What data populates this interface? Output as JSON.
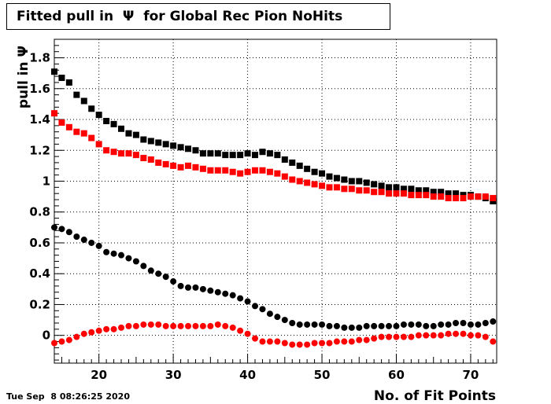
{
  "chart_data": {
    "type": "scatter",
    "title": "Fitted pull in  Ψ  for Global Rec Pion NoHits",
    "xlabel": "No. of Fit Points",
    "ylabel": "pull in Ψ",
    "xlim": [
      14,
      73.5
    ],
    "ylim": [
      -0.18,
      1.92
    ],
    "x_ticks": [
      20,
      30,
      40,
      50,
      60,
      70
    ],
    "y_ticks": [
      0,
      0.2,
      0.4,
      0.6,
      0.8,
      1,
      1.2,
      1.4,
      1.6,
      1.8
    ],
    "x_tick_labels": [
      "20",
      "30",
      "40",
      "50",
      "60",
      "70"
    ],
    "y_tick_labels": [
      "0",
      "0.2",
      "0.4",
      "0.6",
      "0.8",
      "1",
      "1.2",
      "1.4",
      "1.6",
      "1.8"
    ],
    "grid": true,
    "x": [
      14,
      15,
      16,
      17,
      18,
      19,
      20,
      21,
      22,
      23,
      24,
      25,
      26,
      27,
      28,
      29,
      30,
      31,
      32,
      33,
      34,
      35,
      36,
      37,
      38,
      39,
      40,
      41,
      42,
      43,
      44,
      45,
      46,
      47,
      48,
      49,
      50,
      51,
      52,
      53,
      54,
      55,
      56,
      57,
      58,
      59,
      60,
      61,
      62,
      63,
      64,
      65,
      66,
      67,
      68,
      69,
      70,
      71,
      72,
      73
    ],
    "series": [
      {
        "marker": "square",
        "color": "#000000",
        "values": [
          1.71,
          1.67,
          1.64,
          1.56,
          1.52,
          1.47,
          1.43,
          1.39,
          1.37,
          1.34,
          1.31,
          1.3,
          1.27,
          1.26,
          1.25,
          1.24,
          1.23,
          1.22,
          1.21,
          1.2,
          1.18,
          1.18,
          1.18,
          1.17,
          1.17,
          1.17,
          1.18,
          1.17,
          1.19,
          1.18,
          1.17,
          1.14,
          1.12,
          1.1,
          1.08,
          1.06,
          1.05,
          1.03,
          1.02,
          1.01,
          1.0,
          1.0,
          0.99,
          0.98,
          0.97,
          0.96,
          0.96,
          0.95,
          0.95,
          0.94,
          0.94,
          0.93,
          0.93,
          0.92,
          0.92,
          0.91,
          0.91,
          0.9,
          0.89,
          0.87
        ]
      },
      {
        "marker": "square",
        "color": "#ff0000",
        "values": [
          1.44,
          1.38,
          1.35,
          1.32,
          1.31,
          1.28,
          1.24,
          1.2,
          1.19,
          1.18,
          1.18,
          1.17,
          1.15,
          1.14,
          1.12,
          1.11,
          1.1,
          1.09,
          1.1,
          1.09,
          1.08,
          1.07,
          1.07,
          1.07,
          1.06,
          1.05,
          1.06,
          1.07,
          1.07,
          1.06,
          1.05,
          1.03,
          1.01,
          1.0,
          0.99,
          0.98,
          0.97,
          0.96,
          0.96,
          0.95,
          0.95,
          0.94,
          0.94,
          0.93,
          0.93,
          0.92,
          0.92,
          0.92,
          0.91,
          0.91,
          0.91,
          0.9,
          0.9,
          0.89,
          0.89,
          0.89,
          0.9,
          0.9,
          0.9,
          0.89
        ]
      },
      {
        "marker": "circle",
        "color": "#000000",
        "values": [
          0.7,
          0.69,
          0.67,
          0.64,
          0.62,
          0.6,
          0.58,
          0.54,
          0.53,
          0.52,
          0.5,
          0.48,
          0.45,
          0.42,
          0.4,
          0.38,
          0.35,
          0.32,
          0.31,
          0.31,
          0.3,
          0.29,
          0.28,
          0.27,
          0.26,
          0.24,
          0.22,
          0.19,
          0.17,
          0.14,
          0.12,
          0.1,
          0.08,
          0.07,
          0.07,
          0.07,
          0.07,
          0.06,
          0.06,
          0.05,
          0.05,
          0.05,
          0.06,
          0.06,
          0.06,
          0.06,
          0.06,
          0.07,
          0.07,
          0.07,
          0.06,
          0.06,
          0.07,
          0.07,
          0.08,
          0.08,
          0.07,
          0.07,
          0.08,
          0.09
        ]
      },
      {
        "marker": "circle",
        "color": "#ff0000",
        "values": [
          -0.05,
          -0.04,
          -0.03,
          -0.01,
          0.01,
          0.02,
          0.03,
          0.04,
          0.04,
          0.05,
          0.06,
          0.06,
          0.07,
          0.07,
          0.07,
          0.06,
          0.06,
          0.06,
          0.06,
          0.06,
          0.06,
          0.06,
          0.07,
          0.06,
          0.05,
          0.03,
          0.01,
          -0.02,
          -0.04,
          -0.04,
          -0.04,
          -0.05,
          -0.06,
          -0.06,
          -0.06,
          -0.05,
          -0.05,
          -0.05,
          -0.04,
          -0.04,
          -0.04,
          -0.03,
          -0.03,
          -0.02,
          -0.01,
          -0.01,
          -0.01,
          -0.01,
          -0.01,
          0.0,
          0.0,
          0.0,
          0.0,
          0.01,
          0.01,
          0.01,
          0.0,
          0.0,
          -0.01,
          -0.04
        ]
      }
    ]
  },
  "footer": {
    "timestamp": "Tue Sep  8 08:26:25 2020"
  }
}
